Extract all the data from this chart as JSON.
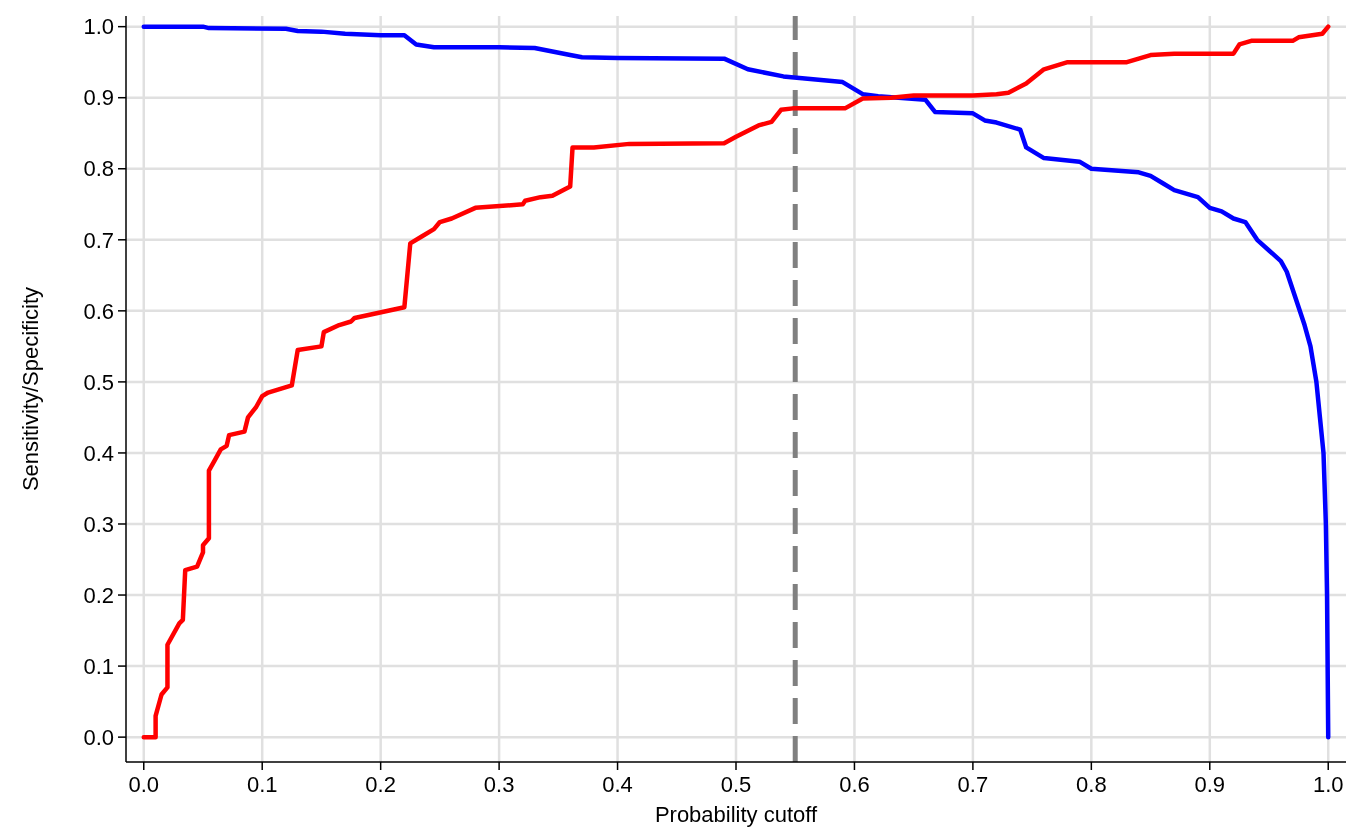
{
  "chart_data": {
    "type": "line",
    "xlabel": "Probability cutoff",
    "ylabel": "Sensitivity/Specificity",
    "xlim": [
      -0.015,
      1.015
    ],
    "ylim": [
      -0.035,
      1.015
    ],
    "xticks": [
      {
        "value": 0,
        "label": "0.0"
      },
      {
        "value": 0.1,
        "label": "0.1"
      },
      {
        "value": 0.2,
        "label": "0.2"
      },
      {
        "value": 0.3,
        "label": "0.3"
      },
      {
        "value": 0.4,
        "label": "0.4"
      },
      {
        "value": 0.5,
        "label": "0.5"
      },
      {
        "value": 0.6,
        "label": "0.6"
      },
      {
        "value": 0.7,
        "label": "0.7"
      },
      {
        "value": 0.8,
        "label": "0.8"
      },
      {
        "value": 0.9,
        "label": "0.9"
      },
      {
        "value": 1,
        "label": "1.0"
      }
    ],
    "yticks": [
      {
        "value": 0,
        "label": "0.0"
      },
      {
        "value": 0.1,
        "label": "0.1"
      },
      {
        "value": 0.2,
        "label": "0.2"
      },
      {
        "value": 0.3,
        "label": "0.3"
      },
      {
        "value": 0.4,
        "label": "0.4"
      },
      {
        "value": 0.5,
        "label": "0.5"
      },
      {
        "value": 0.6,
        "label": "0.6"
      },
      {
        "value": 0.7,
        "label": "0.7"
      },
      {
        "value": 0.8,
        "label": "0.8"
      },
      {
        "value": 0.9,
        "label": "0.9"
      },
      {
        "value": 1,
        "label": "1.0"
      }
    ],
    "grid": true,
    "line_style": "solid",
    "ref_lines": [
      {
        "axis": "x",
        "value": 0.55,
        "color": "#808080",
        "line_style": "dashed"
      }
    ],
    "series": [
      {
        "color": "#0000ff",
        "x": [
          0,
          0.05,
          0.055,
          0.12,
          0.13,
          0.15,
          0.17,
          0.2,
          0.22,
          0.23,
          0.245,
          0.3,
          0.33,
          0.345,
          0.36,
          0.37,
          0.4,
          0.49,
          0.51,
          0.54,
          0.59,
          0.607,
          0.62,
          0.66,
          0.668,
          0.7,
          0.71,
          0.72,
          0.74,
          0.745,
          0.76,
          0.79,
          0.8,
          0.84,
          0.85,
          0.86,
          0.87,
          0.88,
          0.89,
          0.9,
          0.91,
          0.92,
          0.93,
          0.94,
          0.95,
          0.96,
          0.965,
          0.97,
          0.98,
          0.985,
          0.99,
          0.993,
          0.996,
          0.998,
          0.999,
          1
        ],
        "values": [
          1,
          1,
          0.998,
          0.997,
          0.994,
          0.993,
          0.99,
          0.988,
          0.988,
          0.975,
          0.971,
          0.971,
          0.97,
          0.965,
          0.96,
          0.957,
          0.956,
          0.955,
          0.94,
          0.93,
          0.922,
          0.905,
          0.902,
          0.897,
          0.88,
          0.878,
          0.868,
          0.865,
          0.855,
          0.83,
          0.815,
          0.81,
          0.8,
          0.795,
          0.79,
          0.78,
          0.77,
          0.765,
          0.76,
          0.745,
          0.74,
          0.73,
          0.725,
          0.7,
          0.685,
          0.67,
          0.655,
          0.63,
          0.58,
          0.55,
          0.5,
          0.45,
          0.4,
          0.3,
          0.2,
          0
        ]
      },
      {
        "color": "#ff0000",
        "x": [
          0,
          0.01,
          0.01,
          0.015,
          0.02,
          0.02,
          0.03,
          0.033,
          0.035,
          0.045,
          0.05,
          0.05,
          0.055,
          0.055,
          0.06,
          0.065,
          0.07,
          0.072,
          0.085,
          0.088,
          0.095,
          0.1,
          0.105,
          0.125,
          0.13,
          0.15,
          0.152,
          0.165,
          0.175,
          0.178,
          0.22,
          0.225,
          0.235,
          0.245,
          0.25,
          0.26,
          0.28,
          0.32,
          0.322,
          0.335,
          0.345,
          0.36,
          0.362,
          0.38,
          0.41,
          0.49,
          0.5,
          0.519,
          0.53,
          0.538,
          0.548,
          0.592,
          0.607,
          0.631,
          0.65,
          0.7,
          0.72,
          0.73,
          0.745,
          0.76,
          0.78,
          0.83,
          0.84,
          0.85,
          0.87,
          0.92,
          0.925,
          0.935,
          0.97,
          0.975,
          0.995,
          1
        ],
        "values": [
          0,
          0,
          0.03,
          0.06,
          0.07,
          0.13,
          0.16,
          0.165,
          0.235,
          0.24,
          0.26,
          0.27,
          0.28,
          0.375,
          0.39,
          0.405,
          0.41,
          0.425,
          0.43,
          0.45,
          0.465,
          0.48,
          0.485,
          0.495,
          0.545,
          0.55,
          0.57,
          0.58,
          0.585,
          0.59,
          0.605,
          0.695,
          0.705,
          0.715,
          0.725,
          0.73,
          0.745,
          0.75,
          0.755,
          0.76,
          0.762,
          0.775,
          0.83,
          0.83,
          0.835,
          0.836,
          0.845,
          0.861,
          0.866,
          0.883,
          0.885,
          0.885,
          0.899,
          0.9,
          0.903,
          0.903,
          0.905,
          0.907,
          0.92,
          0.94,
          0.95,
          0.95,
          0.955,
          0.96,
          0.962,
          0.962,
          0.975,
          0.98,
          0.98,
          0.985,
          0.99,
          1
        ]
      }
    ]
  }
}
